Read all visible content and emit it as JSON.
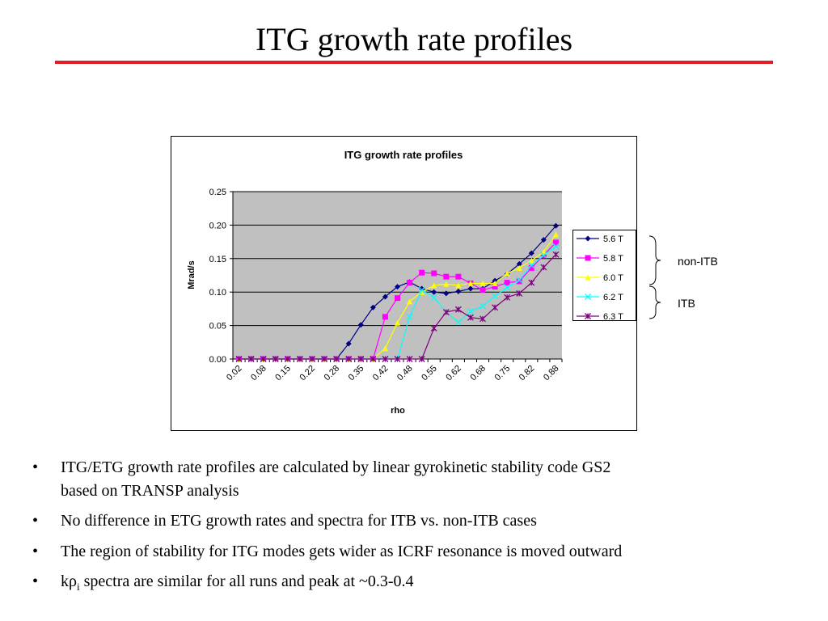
{
  "slide_title": "ITG growth rate profiles",
  "chart_data": {
    "type": "line",
    "title": "ITG growth rate profiles",
    "x_label": "rho",
    "y_label": "Mrad/s",
    "categories": [
      "0.02",
      null,
      "0.08",
      null,
      "0.15",
      null,
      "0.22",
      null,
      "0.28",
      null,
      "0.35",
      null,
      "0.42",
      null,
      "0.48",
      null,
      "0.55",
      null,
      "0.62",
      null,
      "0.68",
      null,
      "0.75",
      null,
      "0.82",
      null,
      "0.88"
    ],
    "ylim": [
      0,
      0.25
    ],
    "yticks": [
      {
        "value": 0,
        "label": "0.00"
      },
      {
        "value": 0.05,
        "label": "0.05"
      },
      {
        "value": 0.1,
        "label": "0.10"
      },
      {
        "value": 0.15,
        "label": "0.15"
      },
      {
        "value": 0.2,
        "label": "0.20"
      },
      {
        "value": 0.25,
        "label": "0.25"
      }
    ],
    "grid": true,
    "legend": "right",
    "series": [
      {
        "name": "5.6 T",
        "color": "#000080",
        "marker": "diamond",
        "values": [
          0,
          0,
          0,
          0,
          0,
          0,
          0,
          0,
          0,
          0.023,
          0.051,
          0.077,
          0.093,
          0.108,
          0.115,
          0.105,
          0.1,
          0.098,
          0.101,
          0.105,
          0.105,
          0.117,
          0.127,
          0.142,
          0.158,
          0.178,
          0.199
        ]
      },
      {
        "name": "5.8 T",
        "color": "#ff00ff",
        "marker": "square",
        "values": [
          0,
          0,
          0,
          0,
          0,
          0,
          0,
          0,
          0,
          0,
          0,
          0,
          0.063,
          0.091,
          0.114,
          0.129,
          0.128,
          0.123,
          0.123,
          0.113,
          0.103,
          0.108,
          0.114,
          0.116,
          0.136,
          0.155,
          0.174
        ]
      },
      {
        "name": "6.0 T",
        "color": "#ffff00",
        "marker": "triangle",
        "values": [
          0,
          0,
          0,
          0,
          0,
          0,
          0,
          0,
          0,
          0,
          0,
          0,
          0.016,
          0.054,
          0.086,
          0.1,
          0.11,
          0.112,
          0.11,
          0.113,
          0.113,
          0.113,
          0.128,
          0.136,
          0.147,
          0.16,
          0.186
        ]
      },
      {
        "name": "6.2 T",
        "color": "#00ffff",
        "marker": "x",
        "values": [
          0,
          0,
          0,
          0,
          0,
          0,
          0,
          0,
          0,
          0,
          0,
          0,
          0,
          0,
          0.063,
          0.103,
          0.092,
          0.07,
          0.055,
          0.071,
          0.079,
          0.094,
          0.107,
          0.118,
          0.14,
          0.155,
          0.168
        ]
      },
      {
        "name": "6.3 T",
        "color": "#800080",
        "marker": "star",
        "values": [
          0,
          0,
          0,
          0,
          0,
          0,
          0,
          0,
          0,
          0,
          0,
          0,
          0,
          0,
          0,
          0,
          0.046,
          0.07,
          0.074,
          0.062,
          0.06,
          0.077,
          0.092,
          0.098,
          0.114,
          0.137,
          0.156
        ]
      }
    ]
  },
  "annotations": [
    "non-ITB",
    "ITB"
  ],
  "bullets": [
    [
      "ITG/ETG growth rate profiles are calculated by linear gyrokinetic stability code GS2",
      "based on TRANSP analysis"
    ],
    [
      "No difference in ETG growth rates and spectra for ITB vs. non-ITB cases"
    ],
    [
      "The region of stability for ITG modes gets wider as ICRF resonance is moved outward"
    ],
    {
      "before": "kρ",
      "sub": "i",
      "after": " spectra are similar for all runs and peak at ~0.3-0.4"
    }
  ]
}
